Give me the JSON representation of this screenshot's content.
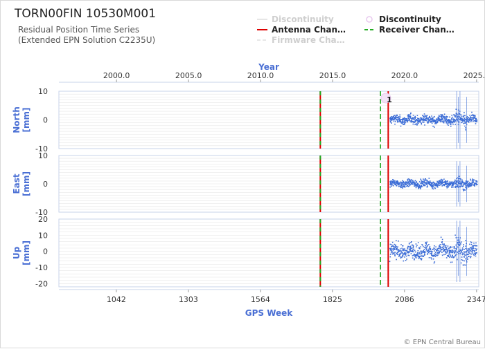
{
  "header": {
    "station_title": "TORN00FIN 10530M001",
    "subtitle_line1": "Residual Position Time Series",
    "subtitle_line2": "(Extended EPN Solution C2235U)"
  },
  "legend": [
    {
      "key": "discontinuity_line",
      "label": "Discontinuity",
      "style": "line",
      "color": "#e6e6e6",
      "dimmed": true
    },
    {
      "key": "discontinuity_marker",
      "label": "Discontinuity",
      "style": "circle",
      "color": "#e8c8ee",
      "dimmed": false
    },
    {
      "key": "antenna_change",
      "label": "Antenna Chan…",
      "style": "line",
      "color": "#dd0000",
      "dimmed": false
    },
    {
      "key": "receiver_change",
      "label": "Receiver Chan…",
      "style": "dashed",
      "color": "#22aa22",
      "dimmed": false
    },
    {
      "key": "firmware_change",
      "label": "Firmware Cha…",
      "style": "dashed",
      "color": "#e6e6e6",
      "dimmed": true
    }
  ],
  "copyright": "© EPN Central Bureau",
  "colors": {
    "series": "#3b6cd6",
    "antenna": "#dd0000",
    "receiver": "#22aa22",
    "axis_label": "#4a6fd4",
    "grid": "#e6e6e6",
    "axis_line": "#c7d3ea"
  },
  "chart_data": {
    "type": "scatter",
    "top_axis": {
      "label": "Year",
      "ticks": [
        "2000.0",
        "2005.0",
        "2010.0",
        "2015.0",
        "2020.0",
        "2025.0"
      ],
      "tick_values": [
        2000.0,
        2005.0,
        2010.0,
        2015.0,
        2020.0,
        2025.0
      ]
    },
    "bottom_axis": {
      "label": "GPS Week",
      "ticks": [
        "1042",
        "1303",
        "1564",
        "1825",
        "2086",
        "2347"
      ],
      "tick_values": [
        1042,
        1303,
        1564,
        1825,
        2086,
        2347
      ],
      "range": [
        834,
        2355
      ]
    },
    "panels": [
      {
        "name": "North",
        "ylabel_line1": "North",
        "ylabel_line2": "[mm]",
        "ylim": [
          -10,
          10
        ],
        "yticks": [
          -10,
          0,
          10
        ],
        "ytick_labels": [
          "-10",
          "0",
          "10"
        ],
        "noise": 1.5,
        "spike": 10
      },
      {
        "name": "East",
        "ylabel_line1": "East",
        "ylabel_line2": "[mm]",
        "ylim": [
          -10,
          10
        ],
        "yticks": [
          -10,
          0,
          10
        ],
        "ytick_labels": [
          "-10",
          "0",
          "10"
        ],
        "noise": 1.2,
        "spike": 8
      },
      {
        "name": "Up",
        "ylabel_line1": "Up",
        "ylabel_line2": "[mm]",
        "ylim": [
          -22,
          20
        ],
        "yticks": [
          -20,
          -10,
          0,
          10,
          20
        ],
        "ytick_labels": [
          "-20",
          "-10",
          "0",
          "10",
          "20"
        ],
        "noise": 4.5,
        "spike": 19
      }
    ],
    "events": [
      {
        "type": "antenna_receiver",
        "gps_week": 1781
      },
      {
        "type": "receiver",
        "gps_week": 1999
      },
      {
        "type": "antenna",
        "gps_week": 2027
      }
    ],
    "discontinuity_marker": {
      "gps_week": 2026,
      "label": "1",
      "panel": "North"
    },
    "data_start_week": 2031,
    "data_end_week": 2347
  }
}
